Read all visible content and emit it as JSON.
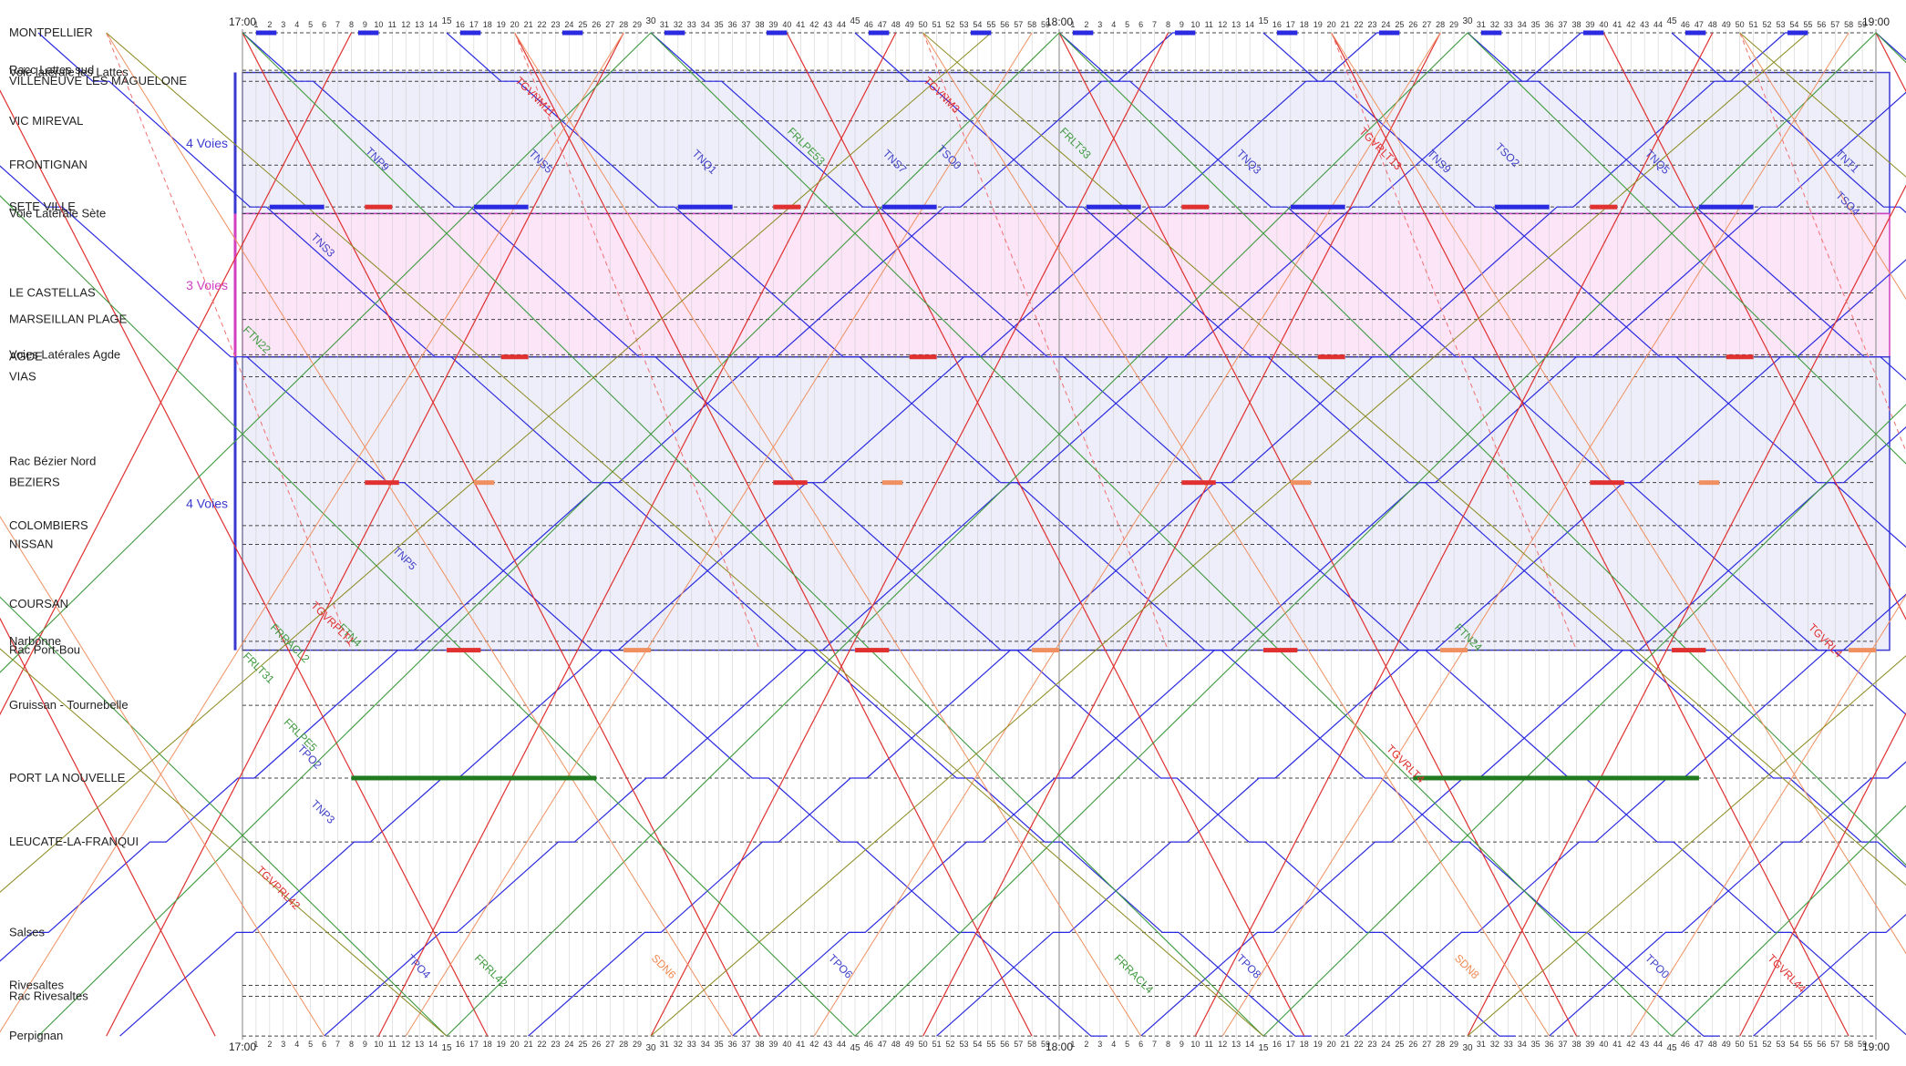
{
  "chart_data": {
    "type": "line",
    "subtype": "graphique espace-temps (train timetable graph)",
    "time_window": {
      "start": "17:00",
      "end": "19:00"
    },
    "x_axis": {
      "unit": "minutes",
      "hour_labels": [
        "17:00",
        "18:00",
        "19:00"
      ],
      "minute_ticks": "1-59 each hour",
      "emphasized_minutes": [
        15,
        30,
        45
      ]
    },
    "stations": [
      {
        "name": "MONTPELLIER",
        "y": 0
      },
      {
        "name": "Racc Lattes sud",
        "y": 34
      },
      {
        "name": "Voie latérale les Lattes",
        "y": 36
      },
      {
        "name": "VILLENEUVE LES MAGUELONE",
        "y": 44
      },
      {
        "name": "VIC MIREVAL",
        "y": 80
      },
      {
        "name": "FRONTIGNAN",
        "y": 120
      },
      {
        "name": "SETE VILLE",
        "y": 158
      },
      {
        "name": "Voie Latérale Sète",
        "y": 164
      },
      {
        "name": "LE CASTELLAS",
        "y": 236
      },
      {
        "name": "MARSEILLAN PLAGE",
        "y": 260
      },
      {
        "name": "Voies Latérales Agde",
        "y": 292
      },
      {
        "name": "AGDE",
        "y": 294
      },
      {
        "name": "VIAS",
        "y": 312
      },
      {
        "name": "Rac Bézier Nord",
        "y": 389
      },
      {
        "name": "BEZIERS",
        "y": 408
      },
      {
        "name": "COLOMBIERS",
        "y": 447
      },
      {
        "name": "NISSAN",
        "y": 464
      },
      {
        "name": "COURSAN",
        "y": 518
      },
      {
        "name": "Narbonne",
        "y": 552
      },
      {
        "name": "Rac Port-Bou",
        "y": 560
      },
      {
        "name": "Gruissan - Tournebelle",
        "y": 610
      },
      {
        "name": "PORT LA NOUVELLE",
        "y": 676
      },
      {
        "name": "LEUCATE-LA-FRANQUI",
        "y": 734
      },
      {
        "name": "Salses",
        "y": 816
      },
      {
        "name": "Rivesaltes",
        "y": 864
      },
      {
        "name": "Rac Rivesaltes",
        "y": 874
      },
      {
        "name": "Perpignan",
        "y": 910
      }
    ],
    "sections": [
      {
        "label": "4 Voies",
        "from_y": 36,
        "to_y": 164,
        "color": "#3a3ad0",
        "fill": "#eeeefa"
      },
      {
        "label": "3 Voies",
        "from_y": 164,
        "to_y": 294,
        "color": "#d040c0",
        "fill": "#fbe5f7"
      },
      {
        "label": "4 Voies",
        "from_y": 294,
        "to_y": 560,
        "color": "#3a3ad0",
        "fill": "#eeeefa"
      }
    ],
    "train_families": [
      {
        "family": "TER omnibus (TNP/TNS/TNQ/TSO/TPO)",
        "color": "#2a2ae0",
        "pattern": "up/down waves with station stops"
      },
      {
        "family": "TGV",
        "color": "#e03030",
        "pattern": "steep diagonals"
      },
      {
        "family": "TGV dashed paths",
        "color": "#f07070",
        "pattern": "dashed diagonals"
      },
      {
        "family": "Fret (FRL/FRP/FTN)",
        "color": "#3f9a3f",
        "pattern": "shallow diagonals"
      },
      {
        "family": "Intercités/TET (SDN)",
        "color": "#f09060",
        "pattern": "diagonals"
      },
      {
        "family": "Fret olive",
        "color": "#8a8a20",
        "pattern": "shallow diagonals"
      }
    ],
    "train_labels": [
      {
        "text": "TNS3",
        "minute": 5,
        "y": 186,
        "color": "#4040c8"
      },
      {
        "text": "TNP9",
        "minute": 9,
        "y": 108,
        "color": "#4040c8"
      },
      {
        "text": "TNS5",
        "minute": 21,
        "y": 110,
        "color": "#4040c8"
      },
      {
        "text": "TNQ1",
        "minute": 33,
        "y": 110,
        "color": "#4040c8"
      },
      {
        "text": "TNS7",
        "minute": 47,
        "y": 110,
        "color": "#4040c8"
      },
      {
        "text": "TSO0",
        "minute": 51,
        "y": 106,
        "color": "#4040c8"
      },
      {
        "text": "TNQ3",
        "minute": 73,
        "y": 110,
        "color": "#4040c8"
      },
      {
        "text": "TNS9",
        "minute": 87,
        "y": 110,
        "color": "#4040c8"
      },
      {
        "text": "TSO2",
        "minute": 92,
        "y": 104,
        "color": "#4040c8"
      },
      {
        "text": "TNQ5",
        "minute": 103,
        "y": 110,
        "color": "#4040c8"
      },
      {
        "text": "TNT1",
        "minute": 117,
        "y": 110,
        "color": "#4040c8"
      },
      {
        "text": "TSO4",
        "minute": 117,
        "y": 148,
        "color": "#4040c8"
      },
      {
        "text": "TNP5",
        "minute": 11,
        "y": 470,
        "color": "#4040c8"
      },
      {
        "text": "TNP3",
        "minute": 5,
        "y": 700,
        "color": "#4040c8"
      },
      {
        "text": "TPO2",
        "minute": 4,
        "y": 650,
        "color": "#4040c8"
      },
      {
        "text": "TPO4",
        "minute": 12,
        "y": 840,
        "color": "#4040c8"
      },
      {
        "text": "TPO6",
        "minute": 43,
        "y": 840,
        "color": "#4040c8"
      },
      {
        "text": "TPO8",
        "minute": 73,
        "y": 840,
        "color": "#4040c8"
      },
      {
        "text": "TPO0",
        "minute": 103,
        "y": 840,
        "color": "#4040c8"
      },
      {
        "text": "TGVNM11",
        "minute": 20,
        "y": 44,
        "color": "#e03030"
      },
      {
        "text": "TGVNM3",
        "minute": 50,
        "y": 44,
        "color": "#e03030"
      },
      {
        "text": "TGVRLT13",
        "minute": 82,
        "y": 90,
        "color": "#e03030"
      },
      {
        "text": "TGVRLT4",
        "minute": 84,
        "y": 650,
        "color": "#e03030"
      },
      {
        "text": "TGVPRL42",
        "minute": 1,
        "y": 760,
        "color": "#e03030"
      },
      {
        "text": "TGVRL44",
        "minute": 112,
        "y": 840,
        "color": "#e03030"
      },
      {
        "text": "FRLT33",
        "minute": 60,
        "y": 90,
        "color": "#3f9a3f"
      },
      {
        "text": "FRLPE53",
        "minute": 40,
        "y": 90,
        "color": "#3f9a3f"
      },
      {
        "text": "FRLT31",
        "minute": 0,
        "y": 566,
        "color": "#3f9a3f"
      },
      {
        "text": "FRLPE5",
        "minute": 3,
        "y": 626,
        "color": "#3f9a3f"
      },
      {
        "text": "FRRL42",
        "minute": 17,
        "y": 840,
        "color": "#3f9a3f"
      },
      {
        "text": "FRRACL2",
        "minute": 2,
        "y": 540,
        "color": "#3f9a3f"
      },
      {
        "text": "FRRACL4",
        "minute": 64,
        "y": 840,
        "color": "#3f9a3f"
      },
      {
        "text": "FTN22",
        "minute": 0,
        "y": 270,
        "color": "#3f9a3f"
      },
      {
        "text": "FTN4",
        "minute": 7,
        "y": 540,
        "color": "#3f9a3f"
      },
      {
        "text": "FTN24",
        "minute": 89,
        "y": 540,
        "color": "#3f9a3f"
      },
      {
        "text": "SDN6",
        "minute": 30,
        "y": 840,
        "color": "#f08850"
      },
      {
        "text": "SDN8",
        "minute": 89,
        "y": 840,
        "color": "#f08850"
      },
      {
        "text": "TGVRPLT1",
        "minute": 5,
        "y": 520,
        "color": "#e03030"
      },
      {
        "text": "TGVRL4",
        "minute": 115,
        "y": 540,
        "color": "#e03030"
      }
    ]
  }
}
